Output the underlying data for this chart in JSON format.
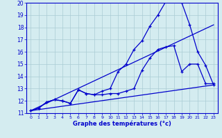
{
  "xlabel": "Graphe des températures (°c)",
  "xlim": [
    -0.5,
    23.5
  ],
  "ylim": [
    11,
    20
  ],
  "xticks": [
    0,
    1,
    2,
    3,
    4,
    5,
    6,
    7,
    8,
    9,
    10,
    11,
    12,
    13,
    14,
    15,
    16,
    17,
    18,
    19,
    20,
    21,
    22,
    23
  ],
  "yticks": [
    11,
    12,
    13,
    14,
    15,
    16,
    17,
    18,
    19,
    20
  ],
  "background_color": "#d4ecf0",
  "grid_color": "#aaccd4",
  "line_color": "#0000cc",
  "series": {
    "max_line": {
      "x": [
        0,
        1,
        2,
        3,
        4,
        5,
        6,
        7,
        8,
        9,
        10,
        11,
        12,
        13,
        14,
        15,
        16,
        17,
        18,
        19,
        20,
        21,
        22,
        23
      ],
      "y": [
        11.2,
        11.4,
        11.9,
        12.1,
        12.0,
        11.8,
        12.9,
        12.6,
        12.5,
        12.8,
        13.0,
        14.4,
        15.0,
        16.2,
        16.9,
        18.1,
        19.0,
        20.1,
        20.2,
        20.0,
        18.2,
        16.0,
        14.9,
        13.3
      ]
    },
    "actual_line": {
      "x": [
        0,
        1,
        2,
        3,
        4,
        5,
        6,
        7,
        8,
        9,
        10,
        11,
        12,
        13,
        14,
        15,
        16,
        17,
        18,
        19,
        20,
        21,
        22,
        23
      ],
      "y": [
        11.2,
        11.4,
        11.9,
        12.1,
        12.0,
        11.8,
        12.9,
        12.6,
        12.5,
        12.5,
        12.6,
        12.6,
        12.8,
        13.0,
        14.5,
        15.5,
        16.2,
        16.4,
        16.5,
        14.4,
        15.0,
        15.0,
        13.4,
        13.4
      ]
    },
    "trend_low": {
      "x": [
        0,
        23
      ],
      "y": [
        11.2,
        13.3
      ]
    },
    "trend_high": {
      "x": [
        0,
        23
      ],
      "y": [
        11.2,
        18.2
      ]
    }
  }
}
